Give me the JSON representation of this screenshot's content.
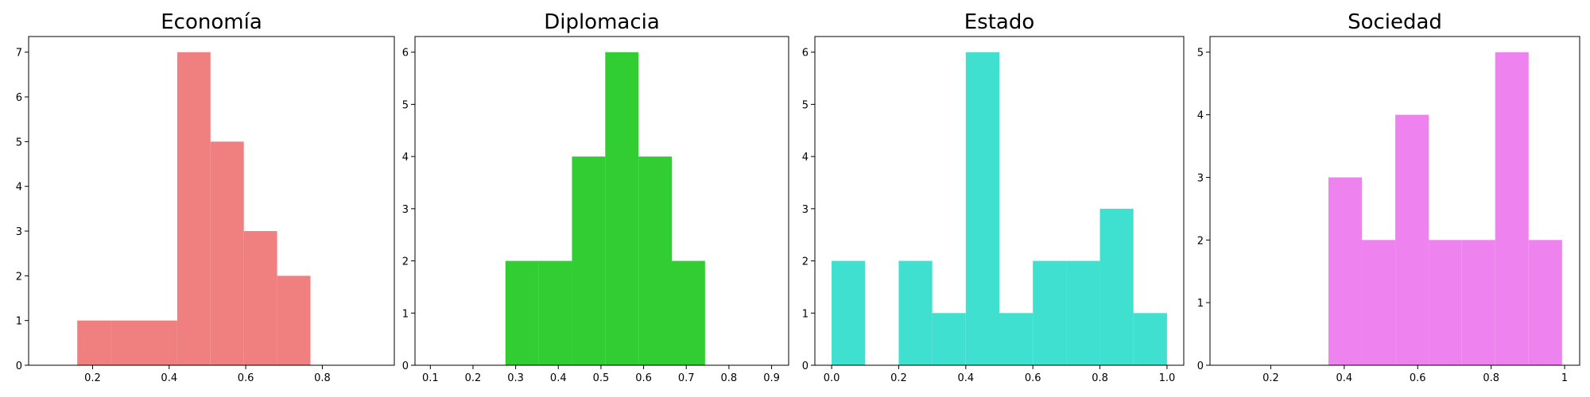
{
  "chart_data": [
    {
      "type": "histogram",
      "title": "Economía",
      "color": "#f08080",
      "bins": [
        0.16,
        0.247,
        0.334,
        0.421,
        0.508,
        0.595,
        0.682,
        0.769
      ],
      "counts": [
        1,
        1,
        1,
        7,
        5,
        3,
        2
      ],
      "xlim": [
        0.033,
        0.988
      ],
      "ylim": [
        0,
        7.35
      ],
      "xticks": [
        0.2,
        0.4,
        0.6,
        0.8
      ],
      "yticks": [
        0,
        1,
        2,
        3,
        4,
        5,
        6,
        7
      ]
    },
    {
      "type": "histogram",
      "title": "Diplomacia",
      "color": "#32cd32",
      "bins": [
        0.276,
        0.354,
        0.432,
        0.51,
        0.588,
        0.666,
        0.744
      ],
      "counts": [
        2,
        2,
        4,
        6,
        4,
        2
      ],
      "xlim": [
        0.064,
        0.94
      ],
      "ylim": [
        0,
        6.3
      ],
      "xticks": [
        0.1,
        0.2,
        0.3,
        0.4,
        0.5,
        0.6,
        0.7,
        0.8,
        0.9
      ],
      "yticks": [
        0,
        1,
        2,
        3,
        4,
        5,
        6
      ]
    },
    {
      "type": "histogram",
      "title": "Estado",
      "color": "#40e0d0",
      "bins": [
        0,
        0.1,
        0.2,
        0.3,
        0.4,
        0.5,
        0.6,
        0.7,
        0.8,
        0.9,
        1
      ],
      "counts": [
        2,
        0,
        2,
        1,
        6,
        1,
        2,
        2,
        3,
        1
      ],
      "xlim": [
        -0.05,
        1.05
      ],
      "ylim": [
        0,
        6.3
      ],
      "xticks": [
        {
          "value": 0,
          "label": "0.0"
        },
        0.2,
        0.4,
        0.6,
        0.8,
        {
          "value": 1,
          "label": "1.0"
        }
      ],
      "yticks": [
        0,
        1,
        2,
        3,
        4,
        5,
        6
      ]
    },
    {
      "type": "histogram",
      "title": "Sociedad",
      "color": "#ee82ee",
      "bins": [
        0.357,
        0.448,
        0.539,
        0.63,
        0.72,
        0.811,
        0.902,
        0.993
      ],
      "counts": [
        3,
        2,
        4,
        2,
        2,
        5,
        2
      ],
      "xlim": [
        0.0345,
        1.041
      ],
      "ylim": [
        0,
        5.25
      ],
      "xticks": [
        0.2,
        0.4,
        0.6,
        0.8,
        1
      ],
      "yticks": [
        0,
        1,
        2,
        3,
        4,
        5
      ]
    }
  ]
}
